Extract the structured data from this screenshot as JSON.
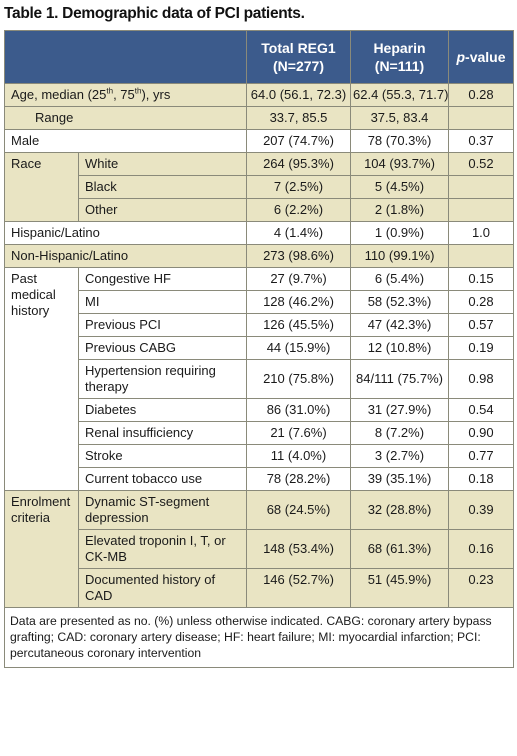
{
  "title": "Table 1. Demographic data of PCI patients.",
  "header": {
    "col_reg1_line1": "Total REG1",
    "col_reg1_line2": "(N=277)",
    "col_heparin_line1": "Heparin",
    "col_heparin_line2": "(N=111)",
    "col_p_italic": "p",
    "col_p_rest": "-value"
  },
  "rows": {
    "age_label_a": "Age, median (25",
    "age_sup1": "th",
    "age_label_b": ", 75",
    "age_sup2": "th",
    "age_label_c": "), yrs",
    "age_reg1": "64.0 (56.1, 72.3)",
    "age_hep": "62.4 (55.3, 71.7)",
    "age_p": "0.28",
    "range_label": "Range",
    "range_reg1": "33.7, 85.5",
    "range_hep": "37.5, 83.4",
    "male_label": "Male",
    "male_reg1": "207 (74.7%)",
    "male_hep": "78 (70.3%)",
    "male_p": "0.37",
    "race_label": "Race",
    "white_label": "White",
    "white_reg1": "264 (95.3%)",
    "white_hep": "104 (93.7%)",
    "white_p": "0.52",
    "black_label": "Black",
    "black_reg1": "7 (2.5%)",
    "black_hep": "5 (4.5%)",
    "other_label": "Other",
    "other_reg1": "6 (2.2%)",
    "other_hep": "2 (1.8%)",
    "hisp_label": "Hispanic/Latino",
    "hisp_reg1": "4 (1.4%)",
    "hisp_hep": "1 (0.9%)",
    "hisp_p": "1.0",
    "nonhisp_label": "Non-Hispanic/Latino",
    "nonhisp_reg1": "273 (98.6%)",
    "nonhisp_hep": "110 (99.1%)",
    "pmh_label_1": "Past",
    "pmh_label_2": "medical",
    "pmh_label_3": "history",
    "chf_label": "Congestive HF",
    "chf_reg1": "27 (9.7%)",
    "chf_hep": "6 (5.4%)",
    "chf_p": "0.15",
    "mi_label": "MI",
    "mi_reg1": "128 (46.2%)",
    "mi_hep": "58 (52.3%)",
    "mi_p": "0.28",
    "pci_label": "Previous PCI",
    "pci_reg1": "126 (45.5%)",
    "pci_hep": "47 (42.3%)",
    "pci_p": "0.57",
    "cabg_label": "Previous CABG",
    "cabg_reg1": "44 (15.9%)",
    "cabg_hep": "12 (10.8%)",
    "cabg_p": "0.19",
    "htn_label": "Hypertension requiring therapy",
    "htn_reg1": "210 (75.8%)",
    "htn_hep": "84/111 (75.7%)",
    "htn_p": "0.98",
    "diab_label": "Diabetes",
    "diab_reg1": "86 (31.0%)",
    "diab_hep": "31 (27.9%)",
    "diab_p": "0.54",
    "renal_label": "Renal insufficiency",
    "renal_reg1": "21 (7.6%)",
    "renal_hep": "8 (7.2%)",
    "renal_p": "0.90",
    "stroke_label": "Stroke",
    "stroke_reg1": "11 (4.0%)",
    "stroke_hep": "3 (2.7%)",
    "stroke_p": "0.77",
    "tob_label": "Current tobacco use",
    "tob_reg1": "78 (28.2%)",
    "tob_hep": "39 (35.1%)",
    "tob_p": "0.18",
    "enrol_label_1": "Enrolment",
    "enrol_label_2": "criteria",
    "st_label": "Dynamic ST-segment depression",
    "st_reg1": "68 (24.5%)",
    "st_hep": "32 (28.8%)",
    "st_p": "0.39",
    "trop_label": "Elevated troponin I, T, or CK-MB",
    "trop_reg1": "148 (53.4%)",
    "trop_hep": "68 (61.3%)",
    "trop_p": "0.16",
    "cad_label": "Documented history of CAD",
    "cad_reg1": "146 (52.7%)",
    "cad_hep": "51 (45.9%)",
    "cad_p": "0.23"
  },
  "footnote": "Data are presented as no. (%) unless otherwise indicated. CABG: coronary artery bypass grafting; CAD: coronary artery disease; HF: heart failure; MI: myocardial infarction; PCI: percutaneous coronary intervention",
  "colors": {
    "header": "#3c5b8c",
    "shade": "#e9e4c3",
    "border": "#8a8a7a"
  }
}
